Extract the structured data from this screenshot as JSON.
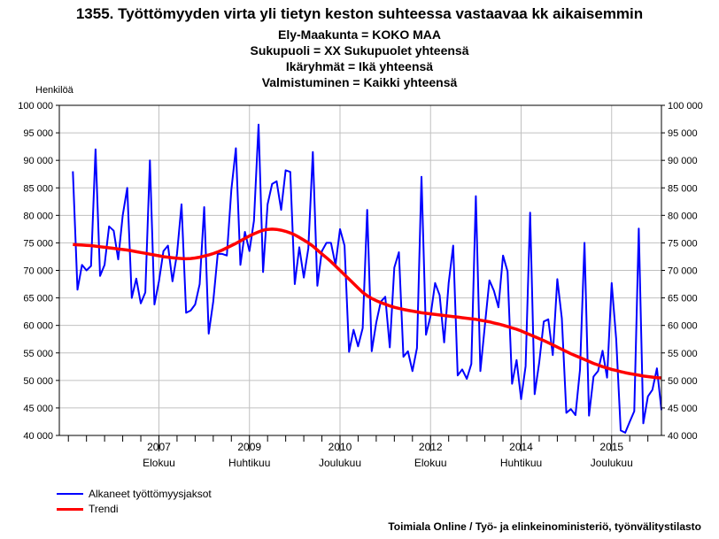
{
  "title": "1355. Työttömyyden virta yli tietyn keston suhteessa vastaavaa kk aikaisemmin",
  "subtitles": [
    "Ely-Maakunta = KOKO MAA",
    "Sukupuoli = XX Sukupuolet yhteensä",
    "Ikäryhmät = Ikä yhteensä",
    "Valmistuminen = Kaikki yhteensä"
  ],
  "source": "Toimiala Online / Työ- ja elinkeinoministeriö, työnvälitystilasto",
  "colors": {
    "series": "#0000ff",
    "trend": "#ff0000",
    "grid": "#c0c0c0"
  },
  "chart_data": {
    "type": "line",
    "ylabel": "Henkilöä",
    "ylim": [
      40000,
      100000
    ],
    "yticks": [
      "40 000",
      "45 000",
      "50 000",
      "55 000",
      "60 000",
      "65 000",
      "70 000",
      "75 000",
      "80 000",
      "85 000",
      "90 000",
      "95 000",
      "100 000"
    ],
    "xlim": [
      "2005-10",
      "2016-11"
    ],
    "xticks": [
      {
        "year": "2007",
        "month": "Elokuu",
        "date": "2007-08"
      },
      {
        "year": "2009",
        "month": "Huhtikuu",
        "date": "2009-04"
      },
      {
        "year": "2010",
        "month": "Joulukuu",
        "date": "2010-12"
      },
      {
        "year": "2012",
        "month": "Elokuu",
        "date": "2012-08"
      },
      {
        "year": "2014",
        "month": "Huhtikuu",
        "date": "2014-04"
      },
      {
        "year": "2015",
        "month": "Joulukuu",
        "date": "2015-12"
      }
    ],
    "start": "2006-01",
    "grid": true,
    "legend_position": "bottom-left",
    "series": [
      {
        "name": "Alkaneet työttömyysjaksot",
        "values": [
          88000,
          66500,
          71000,
          70000,
          70800,
          92000,
          69000,
          71000,
          78000,
          77200,
          72000,
          80000,
          85000,
          65000,
          68500,
          64000,
          66000,
          90000,
          63800,
          68000,
          73500,
          74500,
          68000,
          73000,
          82000,
          62300,
          62700,
          63800,
          67500,
          81500,
          58500,
          64300,
          73000,
          73000,
          72700,
          84700,
          92200,
          71000,
          77000,
          73500,
          79000,
          96500,
          69700,
          82000,
          85700,
          86200,
          81000,
          88200,
          87900,
          67500,
          74200,
          68700,
          74000,
          91500,
          67200,
          73500,
          75000,
          75000,
          71000,
          77500,
          74500,
          55200,
          59200,
          56200,
          59500,
          81000,
          55300,
          60500,
          64300,
          65200,
          56000,
          70500,
          73300,
          54300,
          55300,
          51700,
          55900,
          87000,
          58300,
          61700,
          67700,
          65500,
          56900,
          67700,
          74500,
          50900,
          52000,
          50300,
          53000,
          83500,
          51700,
          60000,
          68200,
          66300,
          63300,
          72700,
          69800,
          49400,
          53700,
          46600,
          52600,
          80500,
          47500,
          53300,
          60700,
          61100,
          54600,
          68400,
          61300,
          44100,
          44800,
          43700,
          51900,
          75000,
          43600,
          50700,
          51700,
          55400,
          50500,
          67700,
          57500,
          40900,
          40500,
          42500,
          44400,
          77600,
          42200,
          47100,
          48300,
          52200,
          44600
        ]
      },
      {
        "name": "Trendi",
        "values": [
          74700,
          74650,
          74600,
          74550,
          74500,
          74400,
          74300,
          74200,
          74100,
          74000,
          73900,
          73800,
          73700,
          73550,
          73400,
          73250,
          73100,
          72950,
          72800,
          72650,
          72500,
          72400,
          72300,
          72200,
          72150,
          72100,
          72150,
          72250,
          72400,
          72600,
          72800,
          73050,
          73350,
          73700,
          74100,
          74500,
          74900,
          75350,
          75800,
          76250,
          76650,
          77000,
          77300,
          77450,
          77500,
          77450,
          77300,
          77100,
          76800,
          76450,
          76000,
          75500,
          75000,
          74400,
          73700,
          73000,
          72300,
          71600,
          70800,
          70000,
          69200,
          68400,
          67600,
          66800,
          66000,
          65400,
          64900,
          64500,
          64150,
          63850,
          63550,
          63300,
          63100,
          62900,
          62750,
          62600,
          62450,
          62300,
          62200,
          62100,
          62000,
          61900,
          61800,
          61700,
          61600,
          61500,
          61400,
          61300,
          61200,
          61100,
          60950,
          60800,
          60650,
          60450,
          60250,
          60050,
          59800,
          59550,
          59300,
          59000,
          58650,
          58300,
          57950,
          57600,
          57250,
          56850,
          56450,
          56050,
          55650,
          55250,
          54850,
          54500,
          54150,
          53800,
          53450,
          53100,
          52800,
          52500,
          52250,
          52000,
          51800,
          51600,
          51400,
          51250,
          51100,
          50950,
          50800,
          50700,
          50600,
          50500,
          50450
        ]
      }
    ]
  }
}
